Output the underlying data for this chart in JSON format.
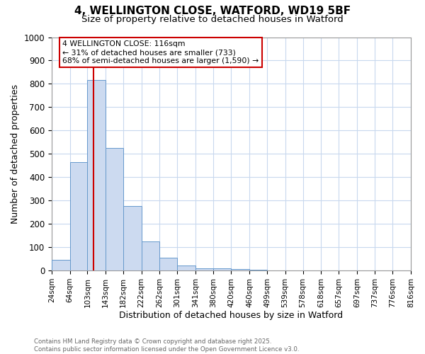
{
  "title_line1": "4, WELLINGTON CLOSE, WATFORD, WD19 5BF",
  "title_line2": "Size of property relative to detached houses in Watford",
  "xlabel": "Distribution of detached houses by size in Watford",
  "ylabel": "Number of detached properties",
  "bin_edges": [
    24,
    64,
    103,
    143,
    182,
    222,
    262,
    301,
    341,
    380,
    420,
    460,
    499,
    539,
    578,
    618,
    657,
    697,
    737,
    776,
    816
  ],
  "bar_heights": [
    45,
    465,
    815,
    525,
    275,
    125,
    55,
    22,
    10,
    10,
    5,
    2,
    1,
    0,
    0,
    0,
    0,
    0,
    0,
    0
  ],
  "bar_color": "#ccdaf0",
  "bar_edge_color": "#6699cc",
  "ylim": [
    0,
    1000
  ],
  "yticks": [
    0,
    100,
    200,
    300,
    400,
    500,
    600,
    700,
    800,
    900,
    1000
  ],
  "red_line_x": 116,
  "red_line_color": "#cc0000",
  "annotation_text": "4 WELLINGTON CLOSE: 116sqm\n← 31% of detached houses are smaller (733)\n68% of semi-detached houses are larger (1,590) →",
  "annotation_box_facecolor": "#ffffff",
  "annotation_box_edgecolor": "#cc0000",
  "footnote_line1": "Contains HM Land Registry data © Crown copyright and database right 2025.",
  "footnote_line2": "Contains public sector information licensed under the Open Government Licence v3.0.",
  "bg_color": "#ffffff",
  "grid_color": "#c8d8ee",
  "spine_color": "#999999"
}
